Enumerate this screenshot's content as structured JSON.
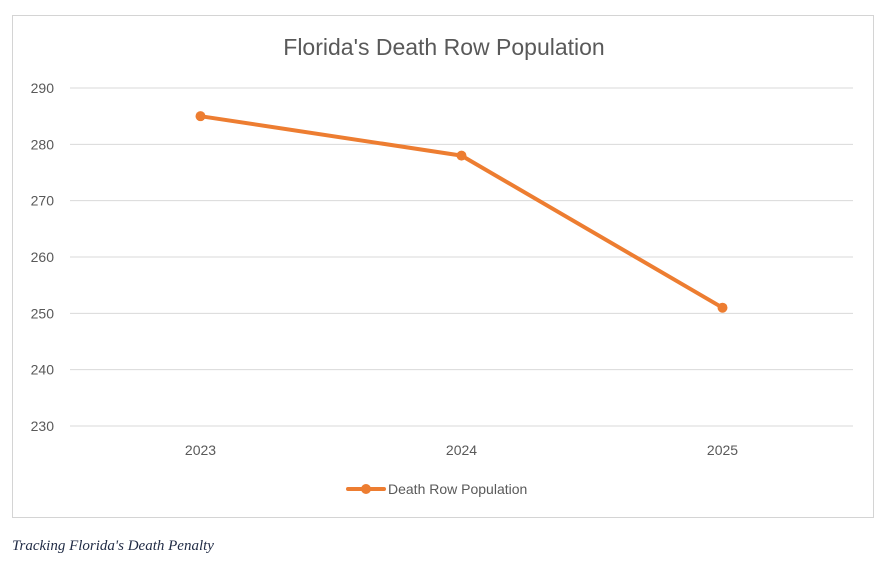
{
  "chart_data": {
    "type": "line",
    "title": "Florida's Death Row Population",
    "categories": [
      "2023",
      "2024",
      "2025"
    ],
    "series": [
      {
        "name": "Death Row Population",
        "values": [
          285,
          278,
          251
        ],
        "color": "#ED7D31"
      }
    ],
    "ylim": [
      230,
      290
    ],
    "yticks": [
      230,
      240,
      250,
      260,
      270,
      280,
      290
    ],
    "grid": true,
    "legend": "bottom",
    "xlabel": "",
    "ylabel": ""
  },
  "caption": "Tracking Florida's Death Penalty"
}
